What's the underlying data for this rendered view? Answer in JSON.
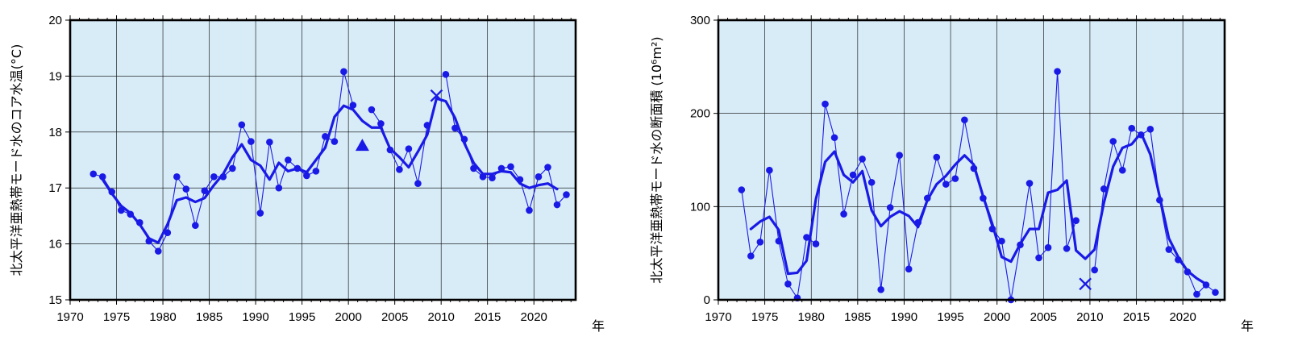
{
  "colors": {
    "plot_bg": "#d8ecf8",
    "series": "#1a1ae6",
    "grid": "#000000",
    "frame": "#000000"
  },
  "chart_data": [
    {
      "type": "line",
      "ylabel": "北太平洋亜熱帯モード水のコア水温(°C)",
      "xunit": "年",
      "xlim": [
        1970,
        2024.5
      ],
      "ylim": [
        15,
        20
      ],
      "xticks": [
        1970,
        1975,
        1980,
        1985,
        1990,
        1995,
        2000,
        2005,
        2010,
        2015,
        2020
      ],
      "yticks": [
        15,
        16,
        17,
        18,
        19,
        20
      ],
      "grid": true,
      "series": [
        {
          "role": "annual",
          "x": [
            1972.5,
            1973.5,
            1974.5,
            1975.5,
            1976.5,
            1977.5,
            1978.5,
            1979.5,
            1980.5,
            1981.5,
            1982.5,
            1983.5,
            1984.5,
            1985.5,
            1986.5,
            1987.5,
            1988.5,
            1989.5,
            1990.5,
            1991.5,
            1992.5,
            1993.5,
            1994.5,
            1995.5,
            1996.5,
            1997.5,
            1998.5,
            1999.5,
            2000.5,
            2002.5,
            2003.5,
            2004.5,
            2005.5,
            2006.5,
            2007.5,
            2008.5,
            2010.5,
            2011.5,
            2012.5,
            2013.5,
            2014.5,
            2015.5,
            2016.5,
            2017.5,
            2018.5,
            2019.5,
            2020.5,
            2021.5,
            2022.5,
            2023.5
          ],
          "y": [
            17.25,
            17.2,
            16.93,
            16.6,
            16.53,
            16.38,
            16.05,
            15.87,
            16.2,
            17.2,
            16.98,
            16.33,
            16.95,
            17.2,
            17.2,
            17.35,
            18.13,
            17.83,
            16.55,
            17.82,
            17.0,
            17.5,
            17.35,
            17.22,
            17.3,
            17.92,
            17.83,
            19.08,
            18.48,
            18.4,
            18.15,
            17.68,
            17.33,
            17.7,
            17.08,
            18.12,
            19.03,
            18.07,
            17.87,
            17.35,
            17.2,
            17.18,
            17.35,
            17.38,
            17.15,
            16.6,
            17.2,
            17.37,
            16.7,
            16.88
          ]
        },
        {
          "role": "running-mean",
          "x": [
            1973.5,
            1974.5,
            1975.5,
            1976.5,
            1977.5,
            1978.5,
            1979.5,
            1980.5,
            1981.5,
            1982.5,
            1983.5,
            1984.5,
            1985.5,
            1986.5,
            1987.5,
            1988.5,
            1989.5,
            1990.5,
            1991.5,
            1992.5,
            1993.5,
            1994.5,
            1995.5,
            1996.5,
            1997.5,
            1998.5,
            1999.5,
            2000.5,
            2001.5,
            2002.5,
            2003.5,
            2004.5,
            2005.5,
            2006.5,
            2007.5,
            2008.5,
            2009.5,
            2010.5,
            2011.5,
            2012.5,
            2013.5,
            2014.5,
            2015.5,
            2016.5,
            2017.5,
            2018.5,
            2019.5,
            2020.5,
            2021.5,
            2022.5
          ],
          "y": [
            17.15,
            16.9,
            16.68,
            16.55,
            16.35,
            16.1,
            16.02,
            16.35,
            16.78,
            16.83,
            16.75,
            16.82,
            17.05,
            17.25,
            17.55,
            17.78,
            17.5,
            17.4,
            17.15,
            17.45,
            17.3,
            17.35,
            17.28,
            17.5,
            17.72,
            18.27,
            18.47,
            18.4,
            18.2,
            18.08,
            18.08,
            17.7,
            17.55,
            17.37,
            17.65,
            17.95,
            18.6,
            18.55,
            18.25,
            17.8,
            17.45,
            17.25,
            17.25,
            17.3,
            17.28,
            17.08,
            17.0,
            17.05,
            17.08,
            16.98
          ]
        }
      ],
      "markers": [
        {
          "shape": "triangle",
          "x": 2001.5,
          "y": 17.75
        },
        {
          "shape": "cross",
          "x": 2009.5,
          "y": 18.65
        }
      ]
    },
    {
      "type": "line",
      "ylabel": "北太平洋亜熱帯モード水の断面積 (10⁶m²)",
      "xunit": "年",
      "xlim": [
        1970,
        2024.5
      ],
      "ylim": [
        0,
        300
      ],
      "xticks": [
        1970,
        1975,
        1980,
        1985,
        1990,
        1995,
        2000,
        2005,
        2010,
        2015,
        2020
      ],
      "yticks": [
        0,
        100,
        200,
        300
      ],
      "grid": true,
      "series": [
        {
          "role": "annual",
          "x": [
            1972.5,
            1973.5,
            1974.5,
            1975.5,
            1976.5,
            1977.5,
            1978.5,
            1979.5,
            1980.5,
            1981.5,
            1982.5,
            1983.5,
            1984.5,
            1985.5,
            1986.5,
            1987.5,
            1988.5,
            1989.5,
            1990.5,
            1991.5,
            1992.5,
            1993.5,
            1994.5,
            1995.5,
            1996.5,
            1997.5,
            1998.5,
            1999.5,
            2000.5,
            2001.5,
            2002.5,
            2003.5,
            2004.5,
            2005.5,
            2006.5,
            2007.5,
            2008.5,
            2010.5,
            2011.5,
            2012.5,
            2013.5,
            2014.5,
            2015.5,
            2016.5,
            2017.5,
            2018.5,
            2019.5,
            2020.5,
            2021.5,
            2022.5,
            2023.5
          ],
          "y": [
            118,
            47,
            62,
            139,
            63,
            17,
            2,
            67,
            60,
            210,
            174,
            92,
            134,
            151,
            126,
            11,
            99,
            155,
            33,
            83,
            109,
            153,
            124,
            130,
            193,
            141,
            109,
            76,
            63,
            0,
            59,
            125,
            45,
            56,
            245,
            55,
            85,
            32,
            119,
            170,
            139,
            184,
            177,
            183,
            107,
            54,
            43,
            30,
            6,
            16,
            8
          ]
        },
        {
          "role": "running-mean",
          "x": [
            1973.5,
            1974.5,
            1975.5,
            1976.5,
            1977.5,
            1978.5,
            1979.5,
            1980.5,
            1981.5,
            1982.5,
            1983.5,
            1984.5,
            1985.5,
            1986.5,
            1987.5,
            1988.5,
            1989.5,
            1990.5,
            1991.5,
            1992.5,
            1993.5,
            1994.5,
            1995.5,
            1996.5,
            1997.5,
            1998.5,
            1999.5,
            2000.5,
            2001.5,
            2002.5,
            2003.5,
            2004.5,
            2005.5,
            2006.5,
            2007.5,
            2008.5,
            2009.5,
            2010.5,
            2011.5,
            2012.5,
            2013.5,
            2014.5,
            2015.5,
            2016.5,
            2017.5,
            2018.5,
            2019.5,
            2020.5,
            2021.5,
            2022.5
          ],
          "y": [
            76,
            84,
            89,
            75,
            28,
            29,
            42,
            108,
            148,
            159,
            134,
            126,
            138,
            96,
            79,
            89,
            95,
            90,
            78,
            107,
            124,
            133,
            145,
            155,
            145,
            111,
            81,
            46,
            41,
            60,
            76,
            76,
            115,
            118,
            128,
            53,
            44,
            54,
            104,
            143,
            163,
            167,
            179,
            156,
            111,
            66,
            46,
            31,
            23,
            17
          ]
        }
      ],
      "markers": [
        {
          "shape": "cross",
          "x": 2009.5,
          "y": 17
        }
      ]
    }
  ]
}
